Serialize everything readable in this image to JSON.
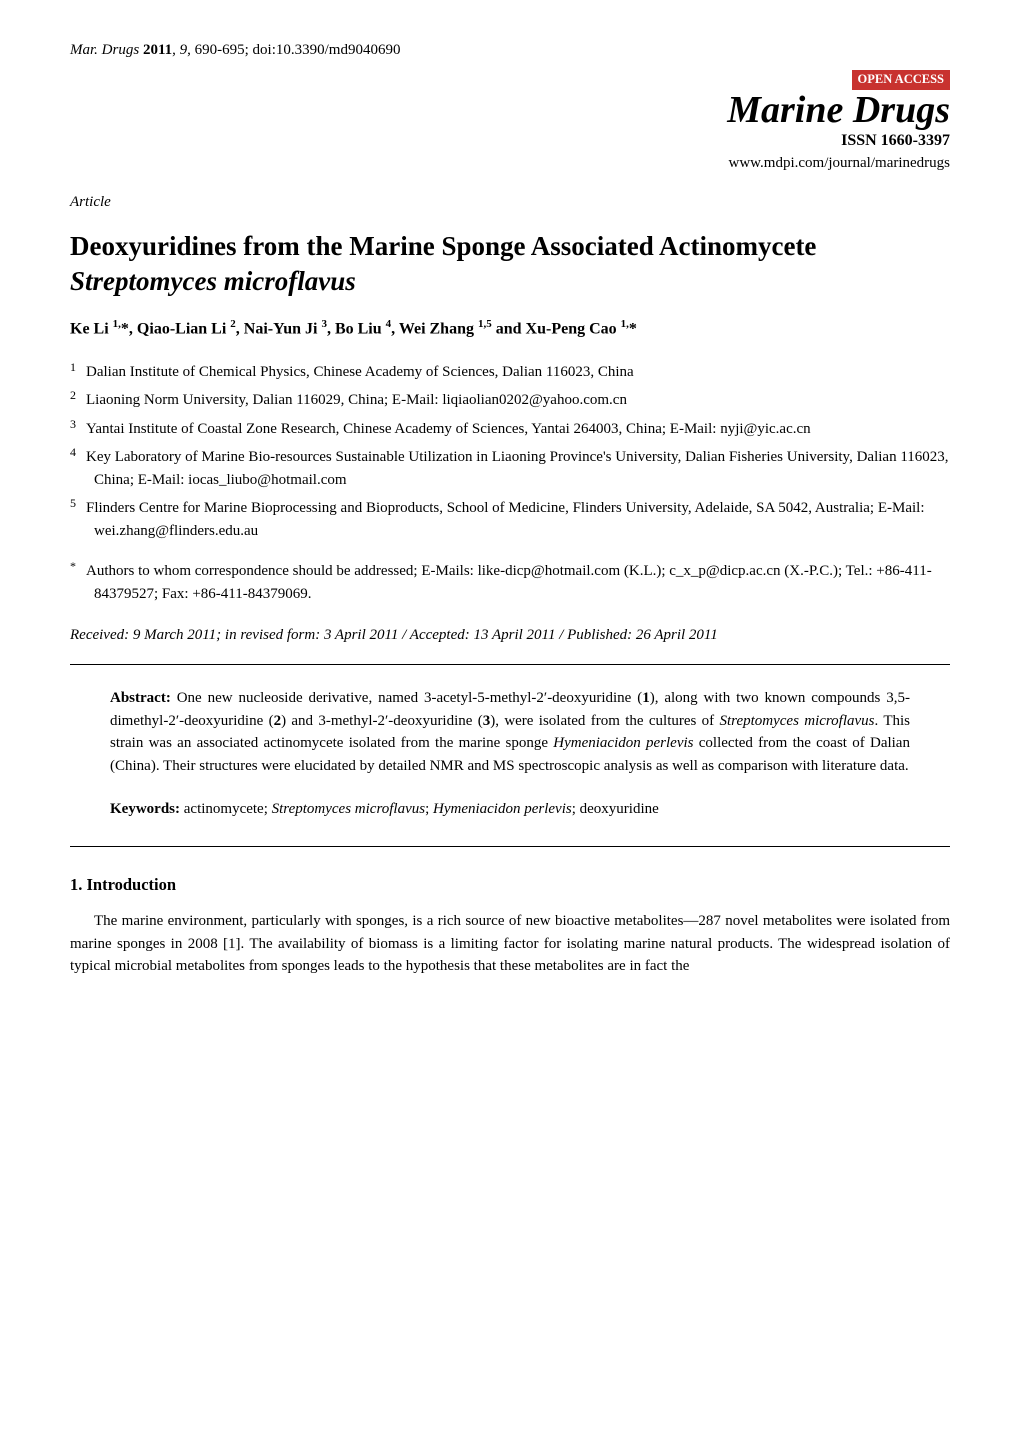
{
  "header": {
    "journal_ref_prefix": "Mar. Drugs",
    "year": "2011",
    "volume": "9",
    "pages": "690-695",
    "doi": "doi:10.3390/md9040690"
  },
  "masthead": {
    "open_access": "OPEN ACCESS",
    "journal_name": "Marine Drugs",
    "issn": "ISSN 1660-3397",
    "url": "www.mdpi.com/journal/marinedrugs",
    "open_access_bg": "#c8322f",
    "open_access_fg": "#ffffff"
  },
  "article_type": "Article",
  "title_plain_prefix": "Deoxyuridines from the Marine Sponge Associated Actinomycete ",
  "title_genus": "Streptomyces microflavus",
  "authors_line": {
    "a1_name": "Ke Li ",
    "a1_sup": "1,",
    "a1_star": "*, ",
    "a2_name": "Qiao-Lian Li ",
    "a2_sup": "2",
    "sep2": ", ",
    "a3_name": "Nai-Yun Ji ",
    "a3_sup": "3",
    "sep3": ", ",
    "a4_name": "Bo Liu ",
    "a4_sup": "4",
    "sep4": ", ",
    "a5_name": "Wei Zhang ",
    "a5_sup": "1,5",
    "and": " and ",
    "a6_name": "Xu-Peng Cao ",
    "a6_sup": "1,",
    "a6_star": "*"
  },
  "affiliations": [
    {
      "num": "1",
      "text": "Dalian Institute of Chemical Physics, Chinese Academy of Sciences, Dalian 116023, China"
    },
    {
      "num": "2",
      "text": "Liaoning Norm University, Dalian 116029, China; E-Mail: liqiaolian0202@yahoo.com.cn"
    },
    {
      "num": "3",
      "text": "Yantai Institute of Coastal Zone Research, Chinese Academy of Sciences, Yantai 264003, China; E-Mail: nyji@yic.ac.cn"
    },
    {
      "num": "4",
      "text": "Key Laboratory of Marine Bio-resources Sustainable Utilization in Liaoning Province's University, Dalian Fisheries University, Dalian 116023, China; E-Mail: iocas_liubo@hotmail.com"
    },
    {
      "num": "5",
      "text": "Flinders Centre for Marine Bioprocessing and Bioproducts, School of Medicine, Flinders University, Adelaide, SA 5042, Australia; E-Mail: wei.zhang@flinders.edu.au"
    }
  ],
  "corresponding_marker": "*",
  "corresponding_text": "Authors to whom correspondence should be addressed; E-Mails: like-dicp@hotmail.com (K.L.); c_x_p@dicp.ac.cn (X.-P.C.); Tel.: +86-411-84379527; Fax: +86-411-84379069.",
  "received": "Received: 9 March 2011; in revised form: 3 April 2011 / Accepted: 13 April 2011 / Published: 26 April 2011",
  "abstract": {
    "label": "Abstract:",
    "seg1": " One new nucleoside derivative, named 3-acetyl-5-methyl-2′-deoxyuridine (",
    "b1": "1",
    "seg2": "), along with two known compounds 3,5-dimethyl-2′-deoxyuridine (",
    "b2": "2",
    "seg3": ") and 3-methyl-2′-deoxyuridine (",
    "b3": "3",
    "seg4": "), were isolated from the cultures of ",
    "it1": "Streptomyces microflavus",
    "seg5": ". This strain was an associated actinomycete isolated from the marine sponge ",
    "it2": "Hymeniacidon perlevis",
    "seg6": " collected from the coast of Dalian (China). Their structures were elucidated by detailed NMR and MS spectroscopic analysis as well as comparison with literature data."
  },
  "keywords": {
    "label": "Keywords:",
    "seg1": " actinomycete; ",
    "it1": "Streptomyces microflavus",
    "seg2": "; ",
    "it2": "Hymeniacidon perlevis",
    "seg3": "; deoxyuridine"
  },
  "section1_heading": "1. Introduction",
  "intro_para": "The marine environment, particularly with sponges, is a rich source of new bioactive metabolites—287 novel metabolites were isolated from marine sponges in 2008 [1]. The availability of biomass is a limiting factor for isolating marine natural products. The widespread isolation of typical microbial metabolites from sponges leads to the hypothesis that these metabolites are in fact the"
}
